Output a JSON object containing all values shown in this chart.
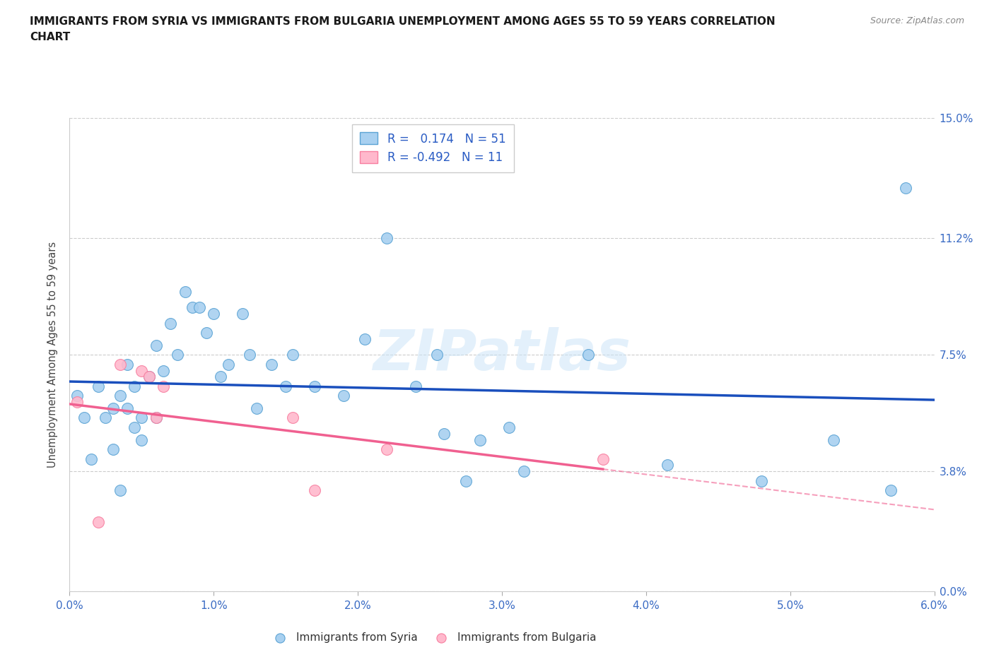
{
  "title_line1": "IMMIGRANTS FROM SYRIA VS IMMIGRANTS FROM BULGARIA UNEMPLOYMENT AMONG AGES 55 TO 59 YEARS CORRELATION",
  "title_line2": "CHART",
  "source": "Source: ZipAtlas.com",
  "ylabel_ticks_vals": [
    0.0,
    3.8,
    7.5,
    11.2,
    15.0
  ],
  "xlabel_ticks_vals": [
    0.0,
    1.0,
    2.0,
    3.0,
    4.0,
    5.0,
    6.0
  ],
  "xmin": 0.0,
  "xmax": 6.0,
  "ymin": 0.0,
  "ymax": 15.0,
  "syria_color": "#a8d0f0",
  "syria_edge_color": "#5ba3d4",
  "bulgaria_color": "#ffb8cc",
  "bulgaria_edge_color": "#f77fa0",
  "syria_line_color": "#1a4fbd",
  "bulgaria_line_color": "#f06090",
  "syria_x": [
    0.05,
    0.1,
    0.15,
    0.2,
    0.25,
    0.3,
    0.3,
    0.35,
    0.35,
    0.4,
    0.4,
    0.45,
    0.45,
    0.5,
    0.5,
    0.55,
    0.6,
    0.6,
    0.65,
    0.7,
    0.75,
    0.8,
    0.85,
    0.9,
    0.95,
    1.0,
    1.05,
    1.1,
    1.2,
    1.25,
    1.3,
    1.4,
    1.5,
    1.55,
    1.7,
    1.9,
    2.05,
    2.2,
    2.4,
    2.55,
    2.6,
    2.75,
    2.85,
    3.05,
    3.15,
    3.6,
    4.15,
    4.8,
    5.3,
    5.7,
    5.8
  ],
  "syria_y": [
    6.2,
    5.5,
    4.2,
    6.5,
    5.5,
    5.8,
    4.5,
    6.2,
    3.2,
    7.2,
    5.8,
    6.5,
    5.2,
    5.5,
    4.8,
    6.8,
    7.8,
    5.5,
    7.0,
    8.5,
    7.5,
    9.5,
    9.0,
    9.0,
    8.2,
    8.8,
    6.8,
    7.2,
    8.8,
    7.5,
    5.8,
    7.2,
    6.5,
    7.5,
    6.5,
    6.2,
    8.0,
    11.2,
    6.5,
    7.5,
    5.0,
    3.5,
    4.8,
    5.2,
    3.8,
    7.5,
    4.0,
    3.5,
    4.8,
    3.2,
    12.8
  ],
  "bulgaria_x": [
    0.05,
    0.2,
    0.35,
    0.5,
    0.55,
    0.6,
    0.65,
    1.55,
    1.7,
    2.2,
    3.7
  ],
  "bulgaria_y": [
    6.0,
    2.2,
    7.2,
    7.0,
    6.8,
    5.5,
    6.5,
    5.5,
    3.2,
    4.5,
    4.2
  ],
  "watermark_text": "ZIPatlas",
  "ylabel": "Unemployment Among Ages 55 to 59 years",
  "legend_syria": "R =   0.174   N = 51",
  "legend_bulgaria": "R = -0.492   N = 11",
  "bottom_legend_syria": "Immigrants from Syria",
  "bottom_legend_bulgaria": "Immigrants from Bulgaria"
}
